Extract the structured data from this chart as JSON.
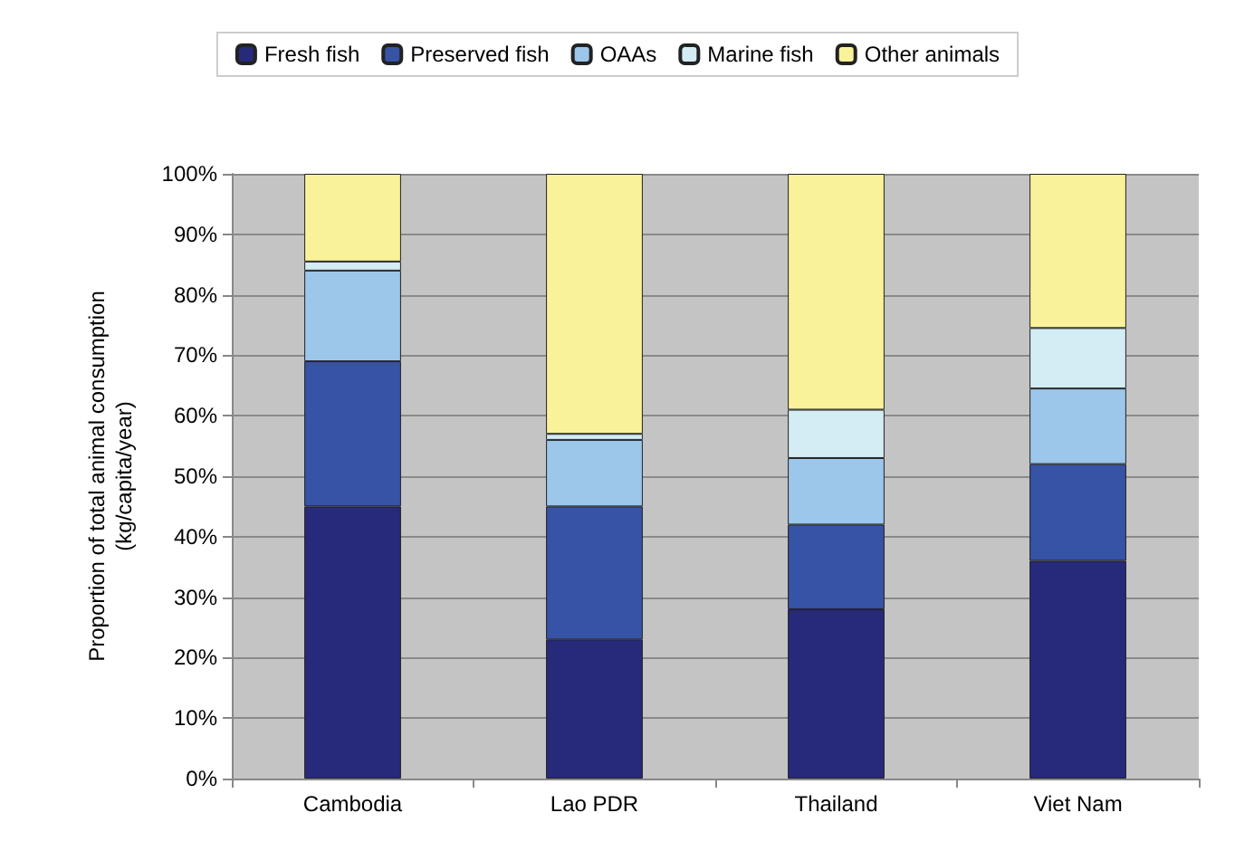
{
  "chart_data": {
    "type": "bar",
    "stacked": true,
    "ylabel": "Proportion of total animal consumption\n(kg/capita/year)",
    "categories": [
      "Cambodia",
      "Lao PDR",
      "Thailand",
      "Viet Nam"
    ],
    "series": [
      {
        "name": "Fresh fish",
        "color": "#27297a",
        "values": [
          45,
          23,
          28,
          36
        ]
      },
      {
        "name": "Preserved fish",
        "color": "#3653a5",
        "values": [
          24,
          22,
          14,
          16
        ]
      },
      {
        "name": "OAAs",
        "color": "#9cc6ea",
        "values": [
          15,
          11,
          11,
          12.5
        ]
      },
      {
        "name": "Marine fish",
        "color": "#d4ecf4",
        "values": [
          1.5,
          1,
          8,
          10
        ]
      },
      {
        "name": "Other animals",
        "color": "#f9f29a",
        "values": [
          14.5,
          43,
          39,
          25.5
        ]
      }
    ],
    "ylim": [
      0,
      100
    ],
    "yticks": [
      {
        "value": 0,
        "label": "0%"
      },
      {
        "value": 10,
        "label": "10%"
      },
      {
        "value": 20,
        "label": "20%"
      },
      {
        "value": 30,
        "label": "30%"
      },
      {
        "value": 40,
        "label": "40%"
      },
      {
        "value": 50,
        "label": "50%"
      },
      {
        "value": 60,
        "label": "60%"
      },
      {
        "value": 70,
        "label": "70%"
      },
      {
        "value": 80,
        "label": "80%"
      },
      {
        "value": 90,
        "label": "90%"
      },
      {
        "value": 100,
        "label": "100%"
      }
    ],
    "grid": "y",
    "legend": "top"
  }
}
